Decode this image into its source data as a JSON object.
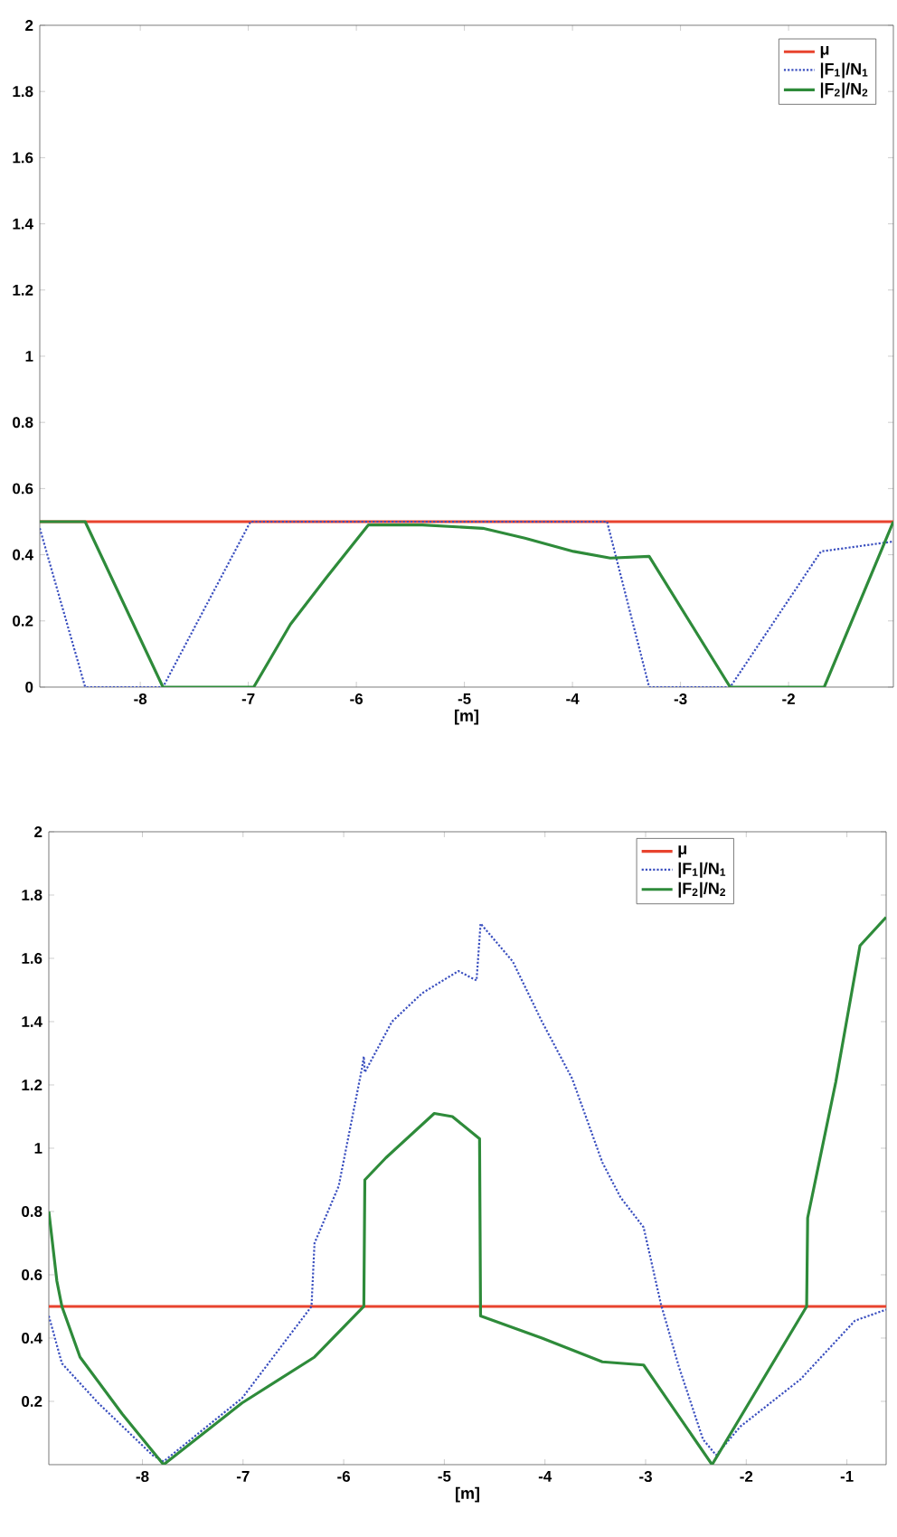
{
  "chart_data": [
    {
      "type": "line",
      "xlabel": "[m]",
      "xlim": [
        -8.93,
        -1.03
      ],
      "ylim": [
        0,
        2
      ],
      "xticks": [
        -8,
        -7,
        -6,
        -5,
        -4,
        -3,
        -2
      ],
      "yticks": [
        0,
        0.2,
        0.4,
        0.6,
        0.8,
        1,
        1.2,
        1.4,
        1.6,
        1.8,
        2
      ],
      "legend": "top right",
      "grid": false,
      "series": [
        {
          "name": "μ",
          "color": "#e8432e",
          "line_style": "solid",
          "x": [
            -8.93,
            -1.03
          ],
          "values": [
            0.5,
            0.5
          ]
        },
        {
          "name": "|F$_{1}$|/N$_{1}$",
          "color": "#3a4fbf",
          "line_style": "dotted",
          "x": [
            -8.93,
            -8.51,
            -7.79,
            -6.98,
            -3.68,
            -3.29,
            -2.54,
            -1.7,
            -1.03
          ],
          "values": [
            0.48,
            0,
            0,
            0.5,
            0.5,
            0,
            0,
            0.41,
            0.44
          ]
        },
        {
          "name": "|F$_{2}$|/N$_{2}$",
          "color": "#2e8b3a",
          "line_style": "solid",
          "x": [
            -8.93,
            -8.51,
            -7.79,
            -6.95,
            -6.61,
            -6.28,
            -5.89,
            -5.39,
            -4.83,
            -4.44,
            -3.99,
            -3.65,
            -3.29,
            -2.54,
            -1.67,
            -1.03
          ],
          "values": [
            0.5,
            0.5,
            0,
            0,
            0.19,
            0.33,
            0.49,
            0.49,
            0.48,
            0.45,
            0.41,
            0.39,
            0.395,
            0,
            0,
            0.5
          ]
        }
      ]
    },
    {
      "type": "line",
      "xlabel": "[m]",
      "xlim": [
        -8.93,
        -0.61
      ],
      "ylim": [
        0,
        2
      ],
      "xticks": [
        -8,
        -7,
        -6,
        -5,
        -4,
        -3,
        -2,
        -1
      ],
      "yticks": [
        0.2,
        0.4,
        0.6,
        0.8,
        1,
        1.2,
        1.4,
        1.6,
        1.8,
        2
      ],
      "legend": "top",
      "grid": false,
      "series": [
        {
          "name": "μ",
          "color": "#e8432e",
          "line_style": "solid",
          "x": [
            -8.93,
            -0.61
          ],
          "values": [
            0.5,
            0.5
          ]
        },
        {
          "name": "|F$_{1}$|/N$_{1}$",
          "color": "#3a4fbf",
          "line_style": "dotted",
          "x": [
            -8.93,
            -8.8,
            -8.44,
            -7.9,
            -7.79,
            -7.01,
            -6.32,
            -6.29,
            -6.05,
            -5.82,
            -5.8,
            -5.79,
            -5.52,
            -5.22,
            -4.86,
            -4.68,
            -4.64,
            -4.32,
            -4.03,
            -3.73,
            -3.43,
            -3.25,
            -3.02,
            -2.85,
            -2.67,
            -2.43,
            -2.3,
            -2.06,
            -1.46,
            -0.92,
            -0.61
          ],
          "values": [
            0.47,
            0.32,
            0.195,
            0.03,
            0.01,
            0.21,
            0.5,
            0.7,
            0.88,
            1.25,
            1.29,
            1.24,
            1.4,
            1.49,
            1.56,
            1.53,
            1.71,
            1.59,
            1.4,
            1.22,
            0.955,
            0.845,
            0.75,
            0.51,
            0.31,
            0.08,
            0.03,
            0.12,
            0.27,
            0.455,
            0.49
          ]
        },
        {
          "name": "|F$_{2}$|/N$_{2}$",
          "color": "#2e8b3a",
          "line_style": "solid",
          "x": [
            -8.93,
            -8.85,
            -8.8,
            -8.62,
            -8.2,
            -7.79,
            -7.01,
            -6.29,
            -5.8,
            -5.79,
            -5.58,
            -5.1,
            -4.92,
            -4.65,
            -4.64,
            -4.03,
            -3.43,
            -3.02,
            -2.34,
            -1.4,
            -1.39,
            -1.11,
            -0.87,
            -0.61
          ],
          "values": [
            0.8,
            0.58,
            0.5,
            0.34,
            0.16,
            0,
            0.195,
            0.34,
            0.5,
            0.9,
            0.97,
            1.11,
            1.1,
            1.03,
            0.47,
            0.4,
            0.325,
            0.315,
            0,
            0.5,
            0.78,
            1.21,
            1.64,
            1.73
          ]
        }
      ]
    }
  ]
}
